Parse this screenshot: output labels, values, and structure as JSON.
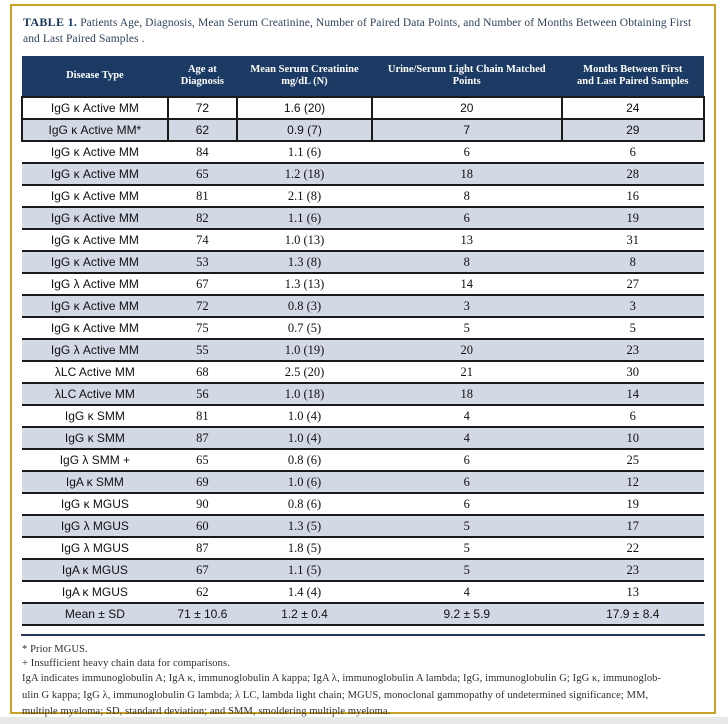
{
  "title": {
    "label": "TABLE 1.",
    "text": "Patients Age, Diagnosis, Mean Serum Creatinine, Number of Paired Data Points, and Number of Months Between Obtaining First and Last Paired Samples ."
  },
  "table": {
    "headers": [
      "Disease Type",
      "Age at\nDiagnosis",
      "Mean Serum Creatinine\nmg/dL (N)",
      "Urine/Serum Light Chain Matched\nPoints",
      "Months Between First\nand Last Paired Samples"
    ],
    "rows": [
      [
        "IgG κ Active MM",
        "72",
        "1.6 (20)",
        "20",
        "24"
      ],
      [
        "IgG κ Active MM*",
        "62",
        "0.9 (7)",
        "7",
        "29"
      ],
      [
        "IgG κ Active MM",
        "84",
        "1.1 (6)",
        "6",
        "6"
      ],
      [
        "IgG κ Active MM",
        "65",
        "1.2 (18)",
        "18",
        "28"
      ],
      [
        "IgG κ Active MM",
        "81",
        "2.1 (8)",
        "8",
        "16"
      ],
      [
        "IgG κ Active MM",
        "82",
        "1.1 (6)",
        "6",
        "19"
      ],
      [
        "IgG κ Active MM",
        "74",
        "1.0 (13)",
        "13",
        "31"
      ],
      [
        "IgG κ Active MM",
        "53",
        "1.3 (8)",
        "8",
        "8"
      ],
      [
        "IgG λ Active MM",
        "67",
        "1.3 (13)",
        "14",
        "27"
      ],
      [
        "IgG κ Active MM",
        "72",
        "0.8 (3)",
        "3",
        "3"
      ],
      [
        "IgG κ Active MM",
        "75",
        "0.7 (5)",
        "5",
        "5"
      ],
      [
        "IgG λ Active MM",
        "55",
        "1.0 (19)",
        "20",
        "23"
      ],
      [
        "λLC Active MM",
        "68",
        "2.5 (20)",
        "21",
        "30"
      ],
      [
        "λLC Active MM",
        "56",
        "1.0 (18)",
        "18",
        "14"
      ],
      [
        "IgG κ SMM",
        "81",
        "1.0 (4)",
        "4",
        "6"
      ],
      [
        "IgG κ SMM",
        "87",
        "1.0 (4)",
        "4",
        "10"
      ],
      [
        "IgG λ SMM +",
        "65",
        "0.8 (6)",
        "6",
        "25"
      ],
      [
        "IgA κ SMM",
        "69",
        "1.0 (6)",
        "6",
        "12"
      ],
      [
        "IgG κ MGUS",
        "90",
        "0.8 (6)",
        "6",
        "19"
      ],
      [
        "IgG λ MGUS",
        "60",
        "1.3 (5)",
        "5",
        "17"
      ],
      [
        "IgG λ MGUS",
        "87",
        "1.8 (5)",
        "5",
        "22"
      ],
      [
        "IgA κ MGUS",
        "67",
        "1.1 (5)",
        "5",
        "23"
      ],
      [
        "IgA κ MGUS",
        "62",
        "1.4 (4)",
        "4",
        "13"
      ]
    ],
    "mean_row": [
      "Mean ± SD",
      "71 ± 10.6",
      "1.2 ± 0.4",
      "9.2 ± 5.9",
      "17.9 ± 8.4"
    ]
  },
  "footnotes": {
    "notes": [
      "* Prior MGUS.",
      "+ Insufficient heavy chain data for comparisons."
    ],
    "abbreviation_lines": [
      "IgA indicates immunoglobulin A; IgA κ, immunoglobulin A kappa; IgA λ, immunoglobulin A lambda; IgG, immunoglobulin G; IgG κ, immunoglob-",
      "ulin G kappa; IgG λ, immunoglobulin G lambda; λ LC, lambda light chain; MGUS, monoclonal gammopathy of undetermined significance; MM,",
      "multiple myeloma; SD, standard deviation; and SMM, smoldering multiple myeloma."
    ]
  },
  "colors": {
    "header_bg": "#1B3A64",
    "row_shade": "#D3D8E5",
    "frame_gold": "#C9A227",
    "title_navy": "#17365D",
    "row_border": "#1a1a1a",
    "bottom_rule": "#24365B"
  }
}
